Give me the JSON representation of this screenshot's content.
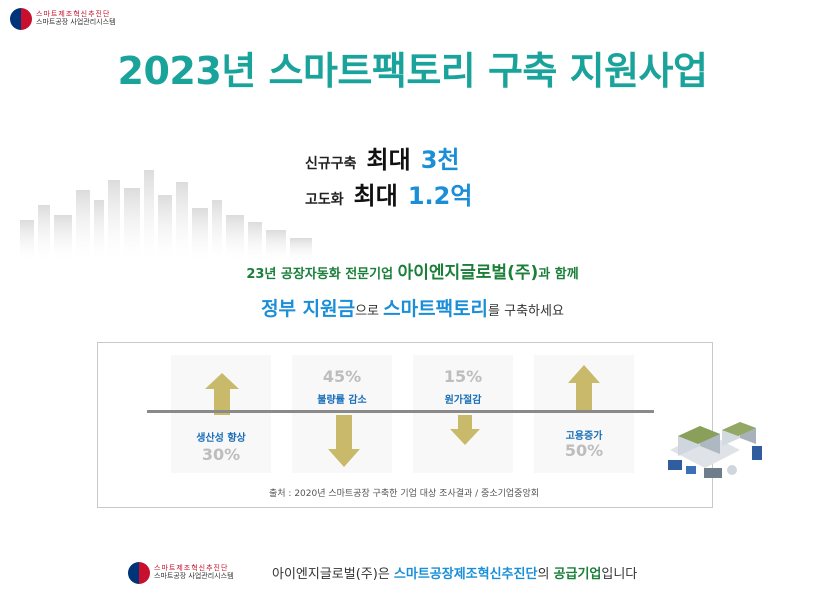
{
  "logo": {
    "line1": "스마트제조혁신추진단",
    "line2": "스마트공장 사업관리시스템"
  },
  "title": "2023년 스마트팩토리 구축 지원사업",
  "offers": [
    {
      "label": "신규구축",
      "max": "최대",
      "amount": "3천"
    },
    {
      "label": "고도화",
      "max": "최대",
      "amount": "1.2억"
    }
  ],
  "intro1": {
    "prefix": "23년 공장자동화 전문기업 ",
    "company": "아이엔지글로벌(주)",
    "suffix": "과 함께"
  },
  "intro2": {
    "part1": "정부 지원금",
    "part2": "으로 ",
    "part3": "스마트팩토리",
    "part4": "를 구축하세요"
  },
  "stats": [
    {
      "label": "생산성 향상",
      "value": "30%",
      "direction": "up"
    },
    {
      "label": "불량률 감소",
      "value": "45%",
      "direction": "down"
    },
    {
      "label": "원가절감",
      "value": "15%",
      "direction": "down"
    },
    {
      "label": "고용증가",
      "value": "50%",
      "direction": "up"
    }
  ],
  "source": "출처 : 2020년 스마트공장 구축한 기업 대상 조사결과 / 중소기업중앙회",
  "footer": {
    "logo_line1": "스마트제조혁신추진단",
    "logo_line2": "스마트공장 사업관리시스템",
    "part1": "아이엔지글로벌(주)은 ",
    "part2": "스마트공장제조혁신추진단",
    "part3": "의 ",
    "part4": "공급기업",
    "part5": "입니다"
  },
  "colors": {
    "title": "#1aa39a",
    "accent_blue": "#1a8fd8",
    "accent_green": "#1b7f3a",
    "arrow": "#c9b96a"
  }
}
